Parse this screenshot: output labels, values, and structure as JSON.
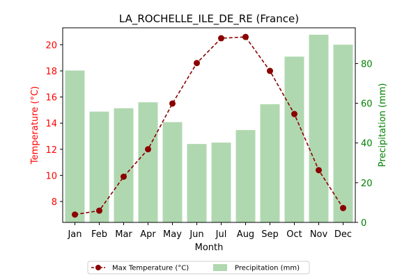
{
  "chart_data": {
    "type": "bar+line",
    "title": "LA_ROCHELLE_ILE_DE_RE (France)",
    "xlabel": "Month",
    "ylabel_left": "Temperature (°C)",
    "ylabel_right": "Precipitation (mm)",
    "categories": [
      "Jan",
      "Feb",
      "Mar",
      "Apr",
      "May",
      "Jun",
      "Jul",
      "Aug",
      "Sep",
      "Oct",
      "Nov",
      "Dec"
    ],
    "series": [
      {
        "name": "Max Temperature (°C)",
        "type": "line",
        "axis": "left",
        "color": "#8b0000",
        "values": [
          7.0,
          7.3,
          9.9,
          12.0,
          15.5,
          18.6,
          20.5,
          20.6,
          18.0,
          14.7,
          10.4,
          7.5
        ]
      },
      {
        "name": "Precipitation (mm)",
        "type": "bar",
        "axis": "right",
        "color": "#b0d8b0",
        "values": [
          76.5,
          55.8,
          57.5,
          60.5,
          50.5,
          39.5,
          40.2,
          46.5,
          59.5,
          83.5,
          94.5,
          89.5
        ]
      }
    ],
    "ylim_left": [
      6.4,
      21.3
    ],
    "ylim_right": [
      0,
      98
    ],
    "yticks_left": [
      8,
      10,
      12,
      14,
      16,
      18,
      20
    ],
    "yticks_right": [
      0,
      20,
      40,
      60,
      80
    ],
    "left_axis_color": "#ff0000",
    "right_axis_color": "#008000",
    "legend_position": "bottom-center",
    "grid": false
  }
}
